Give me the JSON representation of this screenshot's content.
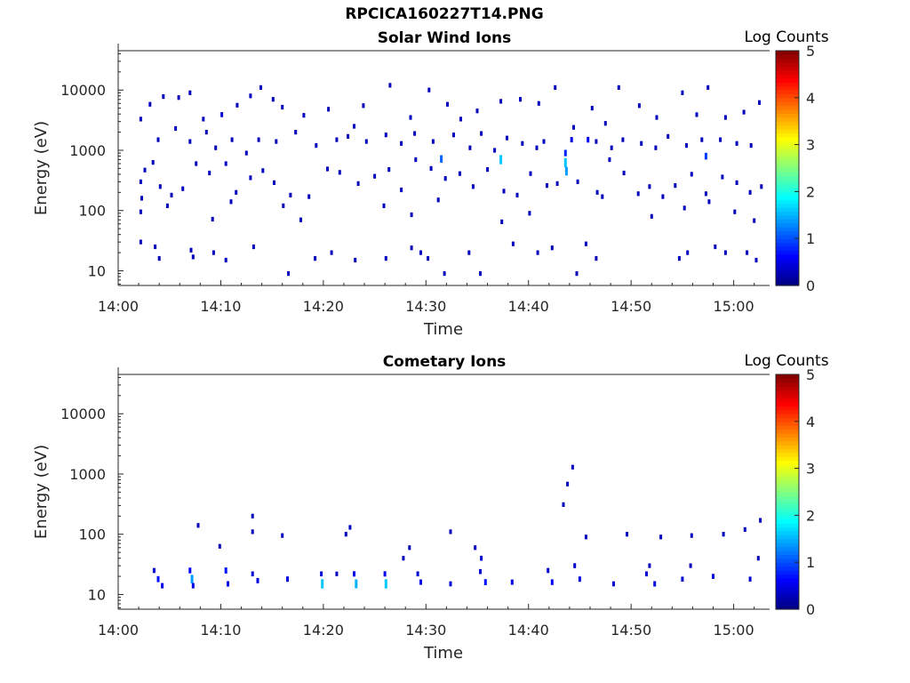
{
  "page_title": "RPCICA160227T14.PNG",
  "colors": {
    "axis": "#262626",
    "colormap": [
      "#00007f",
      "#0000ff",
      "#007fff",
      "#00ffff",
      "#7fff7f",
      "#ffff00",
      "#ff7f00",
      "#ff0000",
      "#7f0000"
    ]
  },
  "chart_data": [
    {
      "type": "heatmap",
      "title": "Solar Wind Ions",
      "xlabel": "Time",
      "ylabel": "Energy (eV)",
      "colorbar_label": "Log Counts",
      "x_unit": "minutes after 14:00",
      "xlim": [
        0,
        63.5
      ],
      "x_ticks": [
        0,
        10,
        20,
        30,
        40,
        50,
        60
      ],
      "x_tick_labels": [
        "14:00",
        "14:10",
        "14:20",
        "14:30",
        "14:40",
        "14:50",
        "15:00"
      ],
      "yscale": "log",
      "ylim": [
        5.7,
        45000
      ],
      "y_ticks": [
        10,
        100,
        1000,
        10000
      ],
      "y_tick_labels": [
        "10",
        "100",
        "1000",
        "10000"
      ],
      "clim": [
        0,
        5
      ],
      "colorbar_ticks": [
        "0",
        "1",
        "2",
        "3",
        "4",
        "5"
      ],
      "points": [
        [
          2.2,
          3300,
          0.3
        ],
        [
          3.1,
          5800,
          0.3
        ],
        [
          4.4,
          7800,
          0.3
        ],
        [
          5.9,
          7500,
          0.3
        ],
        [
          7.0,
          9000,
          0.3
        ],
        [
          8.3,
          3300,
          0.3
        ],
        [
          10.1,
          3900,
          0.4
        ],
        [
          11.6,
          5600,
          0.3
        ],
        [
          12.9,
          8000,
          0.3
        ],
        [
          13.9,
          11000,
          0.3
        ],
        [
          15.1,
          7000,
          0.3
        ],
        [
          16.0,
          5200,
          0.3
        ],
        [
          18.1,
          3800,
          0.3
        ],
        [
          20.5,
          4800,
          0.3
        ],
        [
          23.0,
          2500,
          0.3
        ],
        [
          23.9,
          5500,
          0.3
        ],
        [
          26.5,
          12000,
          0.3
        ],
        [
          28.5,
          3500,
          0.3
        ],
        [
          30.3,
          10000,
          0.3
        ],
        [
          32.1,
          5800,
          0.3
        ],
        [
          33.4,
          3300,
          0.3
        ],
        [
          35.0,
          4500,
          0.3
        ],
        [
          37.3,
          6500,
          0.3
        ],
        [
          39.2,
          7000,
          0.3
        ],
        [
          41.0,
          6000,
          0.3
        ],
        [
          42.6,
          11000,
          0.3
        ],
        [
          44.4,
          2400,
          0.3
        ],
        [
          46.2,
          5000,
          0.3
        ],
        [
          47.5,
          2800,
          0.3
        ],
        [
          48.8,
          11000,
          0.3
        ],
        [
          50.8,
          5500,
          0.3
        ],
        [
          52.5,
          3500,
          0.3
        ],
        [
          55.0,
          9000,
          0.3
        ],
        [
          56.4,
          3900,
          0.3
        ],
        [
          57.5,
          11000,
          0.3
        ],
        [
          59.2,
          3500,
          0.3
        ],
        [
          61.0,
          4300,
          0.3
        ],
        [
          62.5,
          6200,
          0.3
        ],
        [
          3.9,
          1500,
          0.3
        ],
        [
          5.6,
          2300,
          0.3
        ],
        [
          7.0,
          1400,
          0.3
        ],
        [
          8.6,
          2000,
          0.3
        ],
        [
          9.5,
          1100,
          0.3
        ],
        [
          11.1,
          1500,
          0.3
        ],
        [
          12.5,
          900,
          0.3
        ],
        [
          13.7,
          1500,
          0.3
        ],
        [
          15.4,
          1400,
          0.3
        ],
        [
          17.3,
          2000,
          0.3
        ],
        [
          19.3,
          1200,
          0.3
        ],
        [
          21.3,
          1500,
          0.3
        ],
        [
          22.4,
          1700,
          0.3
        ],
        [
          24.2,
          1400,
          0.3
        ],
        [
          26.1,
          1800,
          0.3
        ],
        [
          27.6,
          1300,
          0.3
        ],
        [
          28.9,
          1900,
          0.3
        ],
        [
          30.7,
          1400,
          0.3
        ],
        [
          31.5,
          720,
          1.1
        ],
        [
          32.7,
          1800,
          0.3
        ],
        [
          34.3,
          1100,
          0.3
        ],
        [
          35.4,
          1900,
          0.3
        ],
        [
          36.7,
          1000,
          0.3
        ],
        [
          37.3,
          700,
          1.6
        ],
        [
          37.9,
          1600,
          0.3
        ],
        [
          39.4,
          1300,
          0.3
        ],
        [
          40.8,
          1100,
          0.3
        ],
        [
          41.5,
          1400,
          0.3
        ],
        [
          43.6,
          620,
          1.6
        ],
        [
          43.7,
          450,
          1.4
        ],
        [
          43.6,
          900,
          0.8
        ],
        [
          44.2,
          1500,
          0.5
        ],
        [
          45.8,
          1500,
          0.6
        ],
        [
          46.6,
          1400,
          0.3
        ],
        [
          48.1,
          1100,
          0.3
        ],
        [
          49.2,
          1500,
          0.3
        ],
        [
          51.0,
          1300,
          0.3
        ],
        [
          52.4,
          1100,
          0.3
        ],
        [
          53.6,
          1700,
          0.3
        ],
        [
          55.4,
          1200,
          0.3
        ],
        [
          56.9,
          1500,
          0.3
        ],
        [
          57.3,
          800,
          0.9
        ],
        [
          58.7,
          1500,
          0.3
        ],
        [
          60.3,
          1300,
          0.3
        ],
        [
          61.7,
          1200,
          0.3
        ],
        [
          2.2,
          300,
          0.3
        ],
        [
          2.6,
          470,
          0.3
        ],
        [
          3.4,
          630,
          0.3
        ],
        [
          4.1,
          250,
          0.3
        ],
        [
          5.2,
          180,
          0.3
        ],
        [
          6.3,
          230,
          0.3
        ],
        [
          7.6,
          600,
          0.3
        ],
        [
          8.9,
          420,
          0.3
        ],
        [
          10.5,
          600,
          0.3
        ],
        [
          11.5,
          200,
          0.3
        ],
        [
          12.9,
          350,
          0.3
        ],
        [
          14.1,
          460,
          0.3
        ],
        [
          15.2,
          290,
          0.3
        ],
        [
          16.8,
          180,
          0.3
        ],
        [
          18.6,
          170,
          0.3
        ],
        [
          20.4,
          490,
          0.3
        ],
        [
          21.6,
          430,
          0.3
        ],
        [
          23.4,
          280,
          0.3
        ],
        [
          25.0,
          370,
          0.3
        ],
        [
          26.4,
          480,
          0.3
        ],
        [
          27.6,
          220,
          0.3
        ],
        [
          29.0,
          700,
          0.3
        ],
        [
          30.5,
          500,
          0.3
        ],
        [
          31.9,
          340,
          0.3
        ],
        [
          33.3,
          410,
          0.3
        ],
        [
          34.6,
          250,
          0.3
        ],
        [
          36.0,
          480,
          0.3
        ],
        [
          37.6,
          210,
          0.3
        ],
        [
          38.9,
          180,
          0.3
        ],
        [
          40.2,
          410,
          0.3
        ],
        [
          41.8,
          260,
          0.3
        ],
        [
          42.8,
          280,
          0.3
        ],
        [
          44.8,
          300,
          0.3
        ],
        [
          46.7,
          200,
          0.3
        ],
        [
          47.9,
          700,
          0.3
        ],
        [
          49.3,
          420,
          0.3
        ],
        [
          50.7,
          190,
          0.3
        ],
        [
          51.8,
          250,
          0.3
        ],
        [
          53.1,
          170,
          0.3
        ],
        [
          54.3,
          260,
          0.3
        ],
        [
          55.9,
          400,
          0.3
        ],
        [
          57.3,
          190,
          0.3
        ],
        [
          58.9,
          360,
          0.3
        ],
        [
          60.3,
          290,
          0.3
        ],
        [
          61.6,
          200,
          0.3
        ],
        [
          62.7,
          250,
          0.3
        ],
        [
          2.3,
          160,
          0.3
        ],
        [
          2.2,
          95,
          0.3
        ],
        [
          4.8,
          120,
          0.3
        ],
        [
          9.2,
          72,
          0.3
        ],
        [
          11.0,
          140,
          0.3
        ],
        [
          16.1,
          120,
          0.3
        ],
        [
          17.8,
          70,
          0.3
        ],
        [
          25.9,
          120,
          0.3
        ],
        [
          28.6,
          85,
          0.3
        ],
        [
          31.2,
          150,
          0.3
        ],
        [
          37.4,
          65,
          0.3
        ],
        [
          40.1,
          90,
          0.3
        ],
        [
          47.2,
          170,
          0.3
        ],
        [
          52.0,
          80,
          0.3
        ],
        [
          55.2,
          110,
          0.3
        ],
        [
          57.6,
          140,
          0.3
        ],
        [
          60.1,
          95,
          0.3
        ],
        [
          62.0,
          68,
          0.3
        ],
        [
          2.2,
          30,
          0.3
        ],
        [
          3.6,
          25,
          0.3
        ],
        [
          4.0,
          16,
          0.3
        ],
        [
          7.1,
          22,
          0.3
        ],
        [
          7.3,
          17,
          0.3
        ],
        [
          9.3,
          20,
          0.3
        ],
        [
          10.5,
          15,
          0.3
        ],
        [
          13.2,
          25,
          0.3
        ],
        [
          16.6,
          9,
          0.3
        ],
        [
          19.2,
          16,
          0.3
        ],
        [
          20.8,
          20,
          0.3
        ],
        [
          23.1,
          15,
          0.3
        ],
        [
          26.1,
          16,
          0.3
        ],
        [
          28.6,
          24,
          0.3
        ],
        [
          29.5,
          20,
          0.3
        ],
        [
          30.2,
          16,
          0.3
        ],
        [
          31.8,
          9,
          0.3
        ],
        [
          34.2,
          20,
          0.3
        ],
        [
          35.3,
          9,
          0.3
        ],
        [
          38.5,
          28,
          0.3
        ],
        [
          40.9,
          20,
          0.3
        ],
        [
          42.3,
          24,
          0.3
        ],
        [
          44.7,
          9,
          0.3
        ],
        [
          45.6,
          28,
          0.3
        ],
        [
          46.6,
          16,
          0.3
        ],
        [
          54.7,
          16,
          0.3
        ],
        [
          55.5,
          20,
          0.3
        ],
        [
          58.2,
          25,
          0.3
        ],
        [
          59.2,
          20,
          0.3
        ],
        [
          61.3,
          20,
          0.3
        ],
        [
          62.2,
          15,
          0.3
        ]
      ]
    },
    {
      "type": "heatmap",
      "title": "Cometary Ions",
      "xlabel": "Time",
      "ylabel": "Energy (eV)",
      "colorbar_label": "Log Counts",
      "x_unit": "minutes after 14:00",
      "xlim": [
        0,
        63.5
      ],
      "x_ticks": [
        0,
        10,
        20,
        30,
        40,
        50,
        60
      ],
      "x_tick_labels": [
        "14:00",
        "14:10",
        "14:20",
        "14:30",
        "14:40",
        "14:50",
        "15:00"
      ],
      "yscale": "log",
      "ylim": [
        5.7,
        45000
      ],
      "y_ticks": [
        10,
        100,
        1000,
        10000
      ],
      "y_tick_labels": [
        "10",
        "100",
        "1000",
        "10000"
      ],
      "clim": [
        0,
        5
      ],
      "colorbar_ticks": [
        "0",
        "1",
        "2",
        "3",
        "4",
        "5"
      ],
      "points": [
        [
          3.5,
          25,
          0.4
        ],
        [
          3.9,
          18,
          0.7
        ],
        [
          4.3,
          14,
          0.5
        ],
        [
          7.0,
          25,
          0.6
        ],
        [
          7.2,
          18,
          1.4
        ],
        [
          7.3,
          14,
          0.5
        ],
        [
          10.5,
          25,
          0.7
        ],
        [
          10.7,
          15,
          0.5
        ],
        [
          13.1,
          22,
          0.4
        ],
        [
          13.6,
          17,
          0.5
        ],
        [
          16.5,
          18,
          0.5
        ],
        [
          19.8,
          22,
          0.4
        ],
        [
          19.9,
          15,
          1.6
        ],
        [
          23.0,
          22,
          0.5
        ],
        [
          23.2,
          15,
          1.5
        ],
        [
          26.0,
          22,
          0.5
        ],
        [
          26.1,
          15,
          1.6
        ],
        [
          29.2,
          22,
          0.4
        ],
        [
          29.5,
          16,
          0.5
        ],
        [
          32.4,
          15,
          0.4
        ],
        [
          35.3,
          24,
          0.4
        ],
        [
          35.8,
          16,
          0.7
        ],
        [
          38.4,
          16,
          0.5
        ],
        [
          41.9,
          25,
          0.4
        ],
        [
          42.3,
          16,
          0.6
        ],
        [
          45.0,
          18,
          0.5
        ],
        [
          48.3,
          15,
          0.4
        ],
        [
          51.5,
          22,
          0.4
        ],
        [
          52.3,
          15,
          0.5
        ],
        [
          55.0,
          18,
          0.4
        ],
        [
          58.0,
          20,
          0.4
        ],
        [
          61.6,
          18,
          0.4
        ],
        [
          7.8,
          140,
          0.3
        ],
        [
          9.9,
          63,
          0.3
        ],
        [
          13.1,
          200,
          0.3
        ],
        [
          13.1,
          110,
          0.3
        ],
        [
          16.0,
          95,
          0.3
        ],
        [
          22.6,
          130,
          0.3
        ],
        [
          22.2,
          100,
          0.3
        ],
        [
          32.4,
          110,
          0.3
        ],
        [
          34.8,
          60,
          0.3
        ],
        [
          43.4,
          310,
          0.3
        ],
        [
          43.8,
          680,
          0.3
        ],
        [
          44.3,
          1300,
          0.3
        ],
        [
          45.6,
          90,
          0.3
        ],
        [
          49.6,
          100,
          0.3
        ],
        [
          52.9,
          90,
          0.3
        ],
        [
          55.9,
          95,
          0.3
        ],
        [
          59.0,
          100,
          0.3
        ],
        [
          61.1,
          120,
          0.3
        ],
        [
          62.6,
          170,
          0.3
        ],
        [
          21.3,
          22,
          0.3
        ],
        [
          27.8,
          40,
          0.3
        ],
        [
          28.4,
          60,
          0.3
        ],
        [
          35.4,
          40,
          0.4
        ],
        [
          44.5,
          30,
          0.4
        ],
        [
          51.8,
          30,
          0.3
        ],
        [
          55.8,
          30,
          0.3
        ],
        [
          62.4,
          40,
          0.3
        ]
      ]
    }
  ]
}
